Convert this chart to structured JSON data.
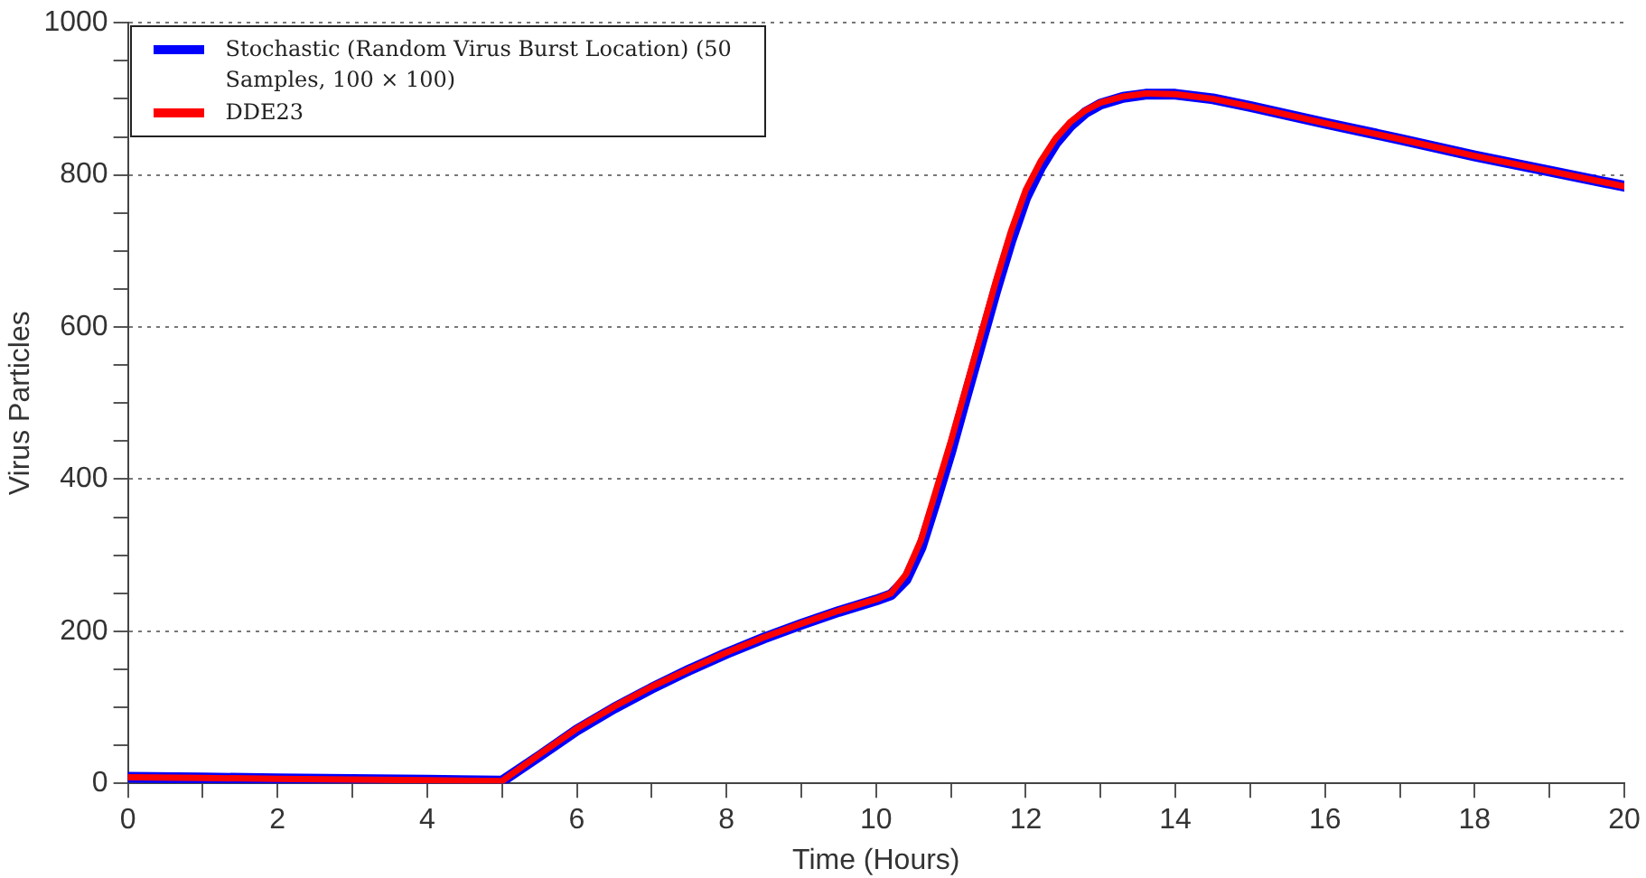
{
  "chart_data": {
    "type": "line",
    "xlabel": "Time (Hours)",
    "ylabel": "Virus Particles",
    "xlim": [
      0,
      20
    ],
    "xticks": [
      0,
      {
        "value": 1,
        "label": null
      },
      2,
      {
        "value": 3,
        "label": null
      },
      4,
      {
        "value": 5,
        "label": null
      },
      6,
      {
        "value": 7,
        "label": null
      },
      8,
      {
        "value": 9,
        "label": null
      },
      10,
      {
        "value": 11,
        "label": null
      },
      12,
      {
        "value": 13,
        "label": null
      },
      14,
      {
        "value": 15,
        "label": null
      },
      16,
      {
        "value": 17,
        "label": null
      },
      18,
      {
        "value": 19,
        "label": null
      },
      20
    ],
    "ylim": [
      0,
      1000
    ],
    "yticks": [
      0,
      {
        "value": 50,
        "label": null
      },
      {
        "value": 100,
        "label": null
      },
      {
        "value": 150,
        "label": null
      },
      200,
      {
        "value": 250,
        "label": null
      },
      {
        "value": 300,
        "label": null
      },
      {
        "value": 350,
        "label": null
      },
      400,
      {
        "value": 450,
        "label": null
      },
      {
        "value": 500,
        "label": null
      },
      {
        "value": 550,
        "label": null
      },
      600,
      {
        "value": 650,
        "label": null
      },
      {
        "value": 700,
        "label": null
      },
      {
        "value": 750,
        "label": null
      },
      800,
      {
        "value": 850,
        "label": null
      },
      {
        "value": 900,
        "label": null
      },
      {
        "value": 950,
        "label": null
      },
      1000
    ],
    "grid": "y",
    "legend": "top left",
    "marker": "none",
    "line_style": "solid",
    "series": [
      {
        "name": "Stochastic (Random Virus Burst Location) (50 Samples, 100 × 100)",
        "color": "#0000ff",
        "x": [
          0,
          1,
          2,
          3,
          4,
          5,
          5.5,
          6,
          6.5,
          7,
          7.5,
          8,
          8.5,
          9,
          9.5,
          10,
          10.2,
          10.4,
          10.6,
          10.8,
          11,
          11.2,
          11.4,
          11.6,
          11.8,
          12,
          12.2,
          12.4,
          12.6,
          12.8,
          13,
          13.3,
          13.6,
          14,
          14.5,
          15,
          16,
          17,
          18,
          19,
          20
        ],
        "values": [
          8,
          7,
          6,
          5,
          4,
          3,
          36,
          70,
          99,
          125,
          149,
          171,
          191,
          209,
          226,
          241,
          248,
          268,
          310,
          372,
          437,
          508,
          578,
          648,
          713,
          770,
          810,
          842,
          865,
          882,
          893,
          902,
          906,
          906,
          900,
          890,
          868,
          847,
          825,
          805,
          785
        ]
      },
      {
        "name": "DDE23",
        "color": "#ff0000",
        "x": [
          0,
          1,
          2,
          3,
          4,
          5,
          5.5,
          6,
          6.5,
          7,
          7.5,
          8,
          8.5,
          9,
          9.5,
          10,
          10.2,
          10.4,
          10.6,
          10.8,
          11,
          11.2,
          11.4,
          11.6,
          11.8,
          12,
          12.2,
          12.4,
          12.6,
          12.8,
          13,
          13.3,
          13.6,
          14,
          14.5,
          15,
          16,
          17,
          18,
          19,
          20
        ],
        "values": [
          8,
          7,
          6,
          5,
          4,
          3,
          38,
          72,
          101,
          127,
          150,
          172,
          192,
          210,
          227,
          242,
          250,
          275,
          320,
          385,
          450,
          520,
          590,
          660,
          725,
          780,
          818,
          848,
          870,
          885,
          895,
          903,
          907,
          906,
          900,
          890,
          868,
          847,
          825,
          805,
          785
        ]
      }
    ]
  }
}
